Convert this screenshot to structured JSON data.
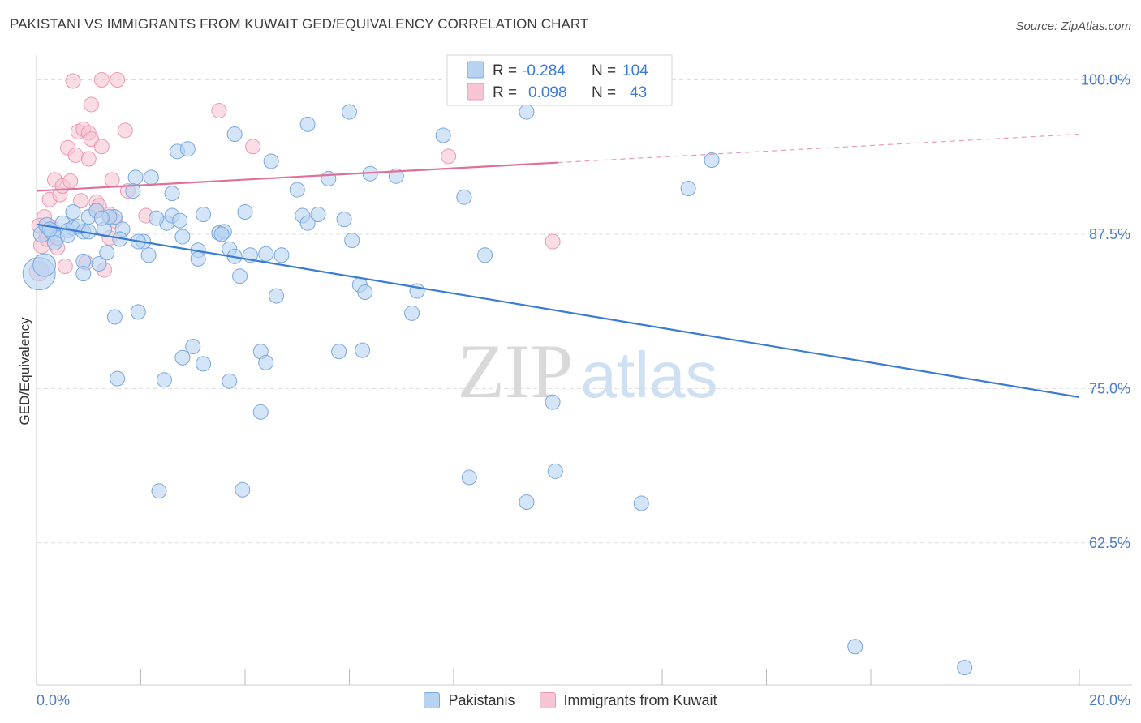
{
  "title": "PAKISTANI VS IMMIGRANTS FROM KUWAIT GED/EQUIVALENCY CORRELATION CHART",
  "source": "Source: ZipAtlas.com",
  "watermark": {
    "zip": "ZIP",
    "atlas": "atlas"
  },
  "colors": {
    "blue_fill": "#b8d3f2",
    "blue_stroke": "#7aa6e0",
    "blue_line": "#3a7bd5",
    "pink_fill": "#f7c4d3",
    "pink_stroke": "#ec98b1",
    "pink_line": "#e0709a",
    "tick_label": "#4a7cc7",
    "grid": "#dddddd"
  },
  "legend_box": {
    "rows": [
      {
        "r_label": "R =",
        "r_value": "-0.284",
        "n_label": "N =",
        "n_value": "104"
      },
      {
        "r_label": "R =",
        "r_value": "0.098",
        "n_label": "N =",
        "n_value": "43"
      }
    ]
  },
  "legend_bottom": [
    {
      "label": "Pakistanis",
      "color": "blue"
    },
    {
      "label": "Immigrants from Kuwait",
      "color": "pink"
    }
  ],
  "chart_data": {
    "type": "scatter",
    "title": "PAKISTANI VS IMMIGRANTS FROM KUWAIT GED/EQUIVALENCY CORRELATION CHART",
    "xlabel": "",
    "ylabel": "GED/Equivalency",
    "xlim": [
      0,
      20
    ],
    "ylim": [
      51,
      102
    ],
    "x_tick_labels": [
      "0.0%",
      "20.0%"
    ],
    "y_ticks": [
      {
        "value": 100,
        "label": "100.0%"
      },
      {
        "value": 87.5,
        "label": "87.5%"
      },
      {
        "value": 75,
        "label": "75.0%"
      },
      {
        "value": 62.5,
        "label": "62.5%"
      }
    ],
    "grid": true,
    "legend_placement": "top-center",
    "series": [
      {
        "name": "Pakistanis",
        "color": "blue",
        "trend": {
          "x0": 0,
          "y0": 88.3,
          "x1": 20,
          "y1": 74.3
        },
        "points": [
          [
            0.05,
            84.3,
            20
          ],
          [
            0.15,
            85.0,
            14
          ],
          [
            0.1,
            87.5,
            10
          ],
          [
            0.2,
            88.2,
            10
          ],
          [
            0.3,
            87.7,
            10
          ],
          [
            0.4,
            87.2,
            9
          ],
          [
            0.5,
            88.4,
            9
          ],
          [
            0.6,
            87.8,
            9
          ],
          [
            0.7,
            88.0,
            9
          ],
          [
            0.8,
            88.1,
            9
          ],
          [
            0.9,
            87.7,
            9
          ],
          [
            1.0,
            88.9,
            9
          ],
          [
            1.15,
            89.4,
            9
          ],
          [
            1.3,
            87.9,
            9
          ],
          [
            1.5,
            88.9,
            9
          ],
          [
            0.7,
            89.3,
            9
          ],
          [
            0.9,
            85.3,
            9
          ],
          [
            0.9,
            84.3,
            9
          ],
          [
            1.2,
            85.1,
            9
          ],
          [
            1.35,
            86.0,
            9
          ],
          [
            1.65,
            87.9,
            9
          ],
          [
            1.6,
            87.1,
            9
          ],
          [
            1.9,
            92.1,
            9
          ],
          [
            2.2,
            92.1,
            9
          ],
          [
            1.85,
            91.0,
            9
          ],
          [
            2.6,
            90.8,
            9
          ],
          [
            2.7,
            94.2,
            9
          ],
          [
            2.9,
            94.4,
            9
          ],
          [
            2.5,
            88.4,
            9
          ],
          [
            2.6,
            89.0,
            9
          ],
          [
            2.75,
            88.6,
            9
          ],
          [
            2.8,
            87.3,
            9
          ],
          [
            3.2,
            89.1,
            9
          ],
          [
            3.5,
            87.6,
            9
          ],
          [
            3.6,
            87.7,
            9
          ],
          [
            3.7,
            86.3,
            9
          ],
          [
            3.8,
            85.7,
            9
          ],
          [
            3.9,
            84.1,
            9
          ],
          [
            4.0,
            89.3,
            9
          ],
          [
            4.1,
            85.8,
            9
          ],
          [
            3.1,
            86.2,
            9
          ],
          [
            3.1,
            85.5,
            9
          ],
          [
            2.05,
            86.9,
            9
          ],
          [
            2.15,
            85.8,
            9
          ],
          [
            1.95,
            86.9,
            9
          ],
          [
            3.8,
            95.6,
            9
          ],
          [
            4.5,
            93.4,
            9
          ],
          [
            4.4,
            85.9,
            9
          ],
          [
            4.7,
            85.8,
            9
          ],
          [
            5.0,
            91.1,
            9
          ],
          [
            5.1,
            89.0,
            9
          ],
          [
            5.2,
            88.4,
            9
          ],
          [
            5.4,
            89.1,
            9
          ],
          [
            5.6,
            92.0,
            9
          ],
          [
            5.9,
            88.7,
            9
          ],
          [
            6.05,
            87.0,
            9
          ],
          [
            6.2,
            83.4,
            9
          ],
          [
            6.3,
            82.8,
            9
          ],
          [
            6.4,
            92.4,
            9
          ],
          [
            6.9,
            92.2,
            9
          ],
          [
            5.2,
            96.4,
            9
          ],
          [
            6.0,
            97.4,
            9
          ],
          [
            7.8,
            95.5,
            9
          ],
          [
            8.2,
            90.5,
            9
          ],
          [
            8.6,
            85.8,
            9
          ],
          [
            7.3,
            82.9,
            9
          ],
          [
            7.2,
            81.1,
            9
          ],
          [
            4.6,
            82.5,
            9
          ],
          [
            5.8,
            78.0,
            9
          ],
          [
            6.25,
            78.1,
            9
          ],
          [
            4.3,
            78.0,
            9
          ],
          [
            4.4,
            77.1,
            9
          ],
          [
            3.0,
            78.4,
            9
          ],
          [
            2.8,
            77.5,
            9
          ],
          [
            3.2,
            77.0,
            9
          ],
          [
            1.55,
            75.8,
            9
          ],
          [
            2.45,
            75.7,
            9
          ],
          [
            3.7,
            75.6,
            9
          ],
          [
            4.3,
            73.1,
            9
          ],
          [
            1.5,
            80.8,
            9
          ],
          [
            1.95,
            81.2,
            9
          ],
          [
            9.9,
            73.9,
            9
          ],
          [
            8.3,
            67.8,
            9
          ],
          [
            9.95,
            68.3,
            9
          ],
          [
            9.4,
            65.8,
            9
          ],
          [
            11.6,
            65.7,
            9
          ],
          [
            2.35,
            66.7,
            9
          ],
          [
            3.95,
            66.8,
            9
          ],
          [
            12.5,
            91.2,
            9
          ],
          [
            12.95,
            93.5,
            9
          ],
          [
            8.2,
            100.0,
            9
          ],
          [
            8.6,
            100.0,
            9
          ],
          [
            11.3,
            100.0,
            9
          ],
          [
            9.4,
            97.4,
            9
          ],
          [
            15.7,
            54.1,
            9
          ],
          [
            17.8,
            52.4,
            9
          ],
          [
            1.0,
            87.7,
            9
          ],
          [
            0.35,
            86.8,
            9
          ],
          [
            0.6,
            87.4,
            9
          ],
          [
            1.4,
            88.9,
            9
          ],
          [
            3.55,
            87.5,
            9
          ],
          [
            2.3,
            88.8,
            9
          ],
          [
            0.25,
            87.9,
            9
          ],
          [
            1.25,
            88.8,
            9
          ]
        ]
      },
      {
        "name": "Immigrants from Kuwait",
        "color": "pink",
        "trend": {
          "x0": 0,
          "y0": 91.0,
          "x1": 10,
          "y1": 93.3,
          "dash_to_x": 20,
          "dash_to_y": 95.6
        },
        "points": [
          [
            0.05,
            84.5,
            12
          ],
          [
            0.1,
            86.6,
            10
          ],
          [
            0.2,
            87.5,
            10
          ],
          [
            0.3,
            88.0,
            9
          ],
          [
            0.15,
            88.9,
            9
          ],
          [
            0.25,
            90.3,
            9
          ],
          [
            0.35,
            91.9,
            9
          ],
          [
            0.45,
            90.7,
            9
          ],
          [
            0.5,
            91.4,
            9
          ],
          [
            0.65,
            91.8,
            9
          ],
          [
            0.85,
            90.2,
            9
          ],
          [
            1.15,
            90.1,
            9
          ],
          [
            1.2,
            89.8,
            9
          ],
          [
            1.4,
            89.1,
            9
          ],
          [
            1.45,
            91.9,
            9
          ],
          [
            1.75,
            91.0,
            9
          ],
          [
            2.1,
            89.0,
            9
          ],
          [
            0.6,
            94.5,
            9
          ],
          [
            0.75,
            93.9,
            9
          ],
          [
            0.8,
            95.8,
            9
          ],
          [
            0.9,
            96.0,
            9
          ],
          [
            1.0,
            95.7,
            9
          ],
          [
            1.05,
            95.2,
            9
          ],
          [
            1.25,
            94.6,
            9
          ],
          [
            1.0,
            93.6,
            9
          ],
          [
            1.7,
            95.9,
            9
          ],
          [
            0.7,
            99.9,
            9
          ],
          [
            1.25,
            100.0,
            9
          ],
          [
            1.55,
            100.0,
            9
          ],
          [
            1.05,
            98.0,
            9
          ],
          [
            3.5,
            97.5,
            9
          ],
          [
            4.15,
            94.6,
            9
          ],
          [
            7.9,
            93.8,
            9
          ],
          [
            9.9,
            86.9,
            9
          ],
          [
            0.55,
            84.9,
            9
          ],
          [
            1.3,
            84.6,
            9
          ],
          [
            1.4,
            87.2,
            9
          ],
          [
            0.4,
            86.4,
            9
          ],
          [
            1.15,
            89.4,
            9
          ],
          [
            0.2,
            87.1,
            9
          ],
          [
            0.95,
            85.2,
            9
          ],
          [
            1.5,
            88.6,
            9
          ],
          [
            0.05,
            88.2,
            9
          ]
        ]
      }
    ]
  }
}
